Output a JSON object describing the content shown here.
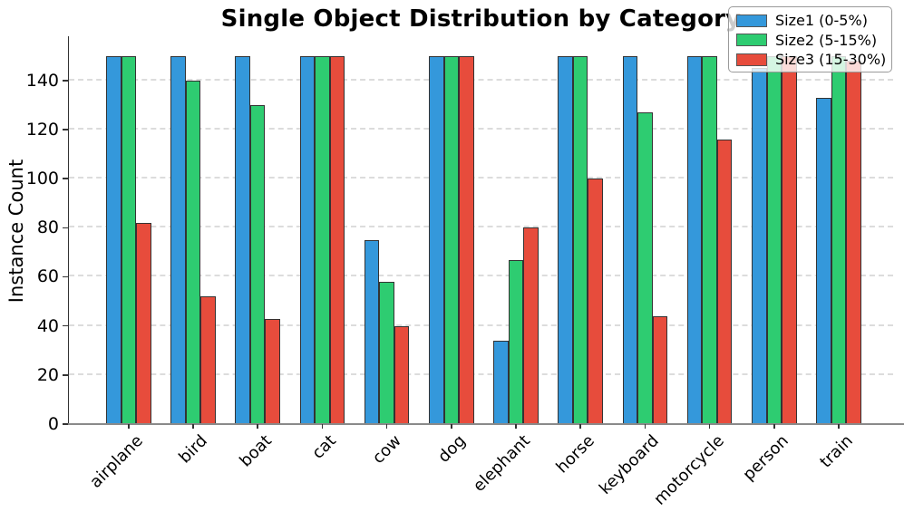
{
  "chart_data": {
    "type": "bar",
    "title": "Single Object Distribution by Category",
    "ylabel": "Instance Count",
    "xlabel": "",
    "categories": [
      "airplane",
      "bird",
      "boat",
      "cat",
      "cow",
      "dog",
      "elephant",
      "horse",
      "keyboard",
      "motorcycle",
      "person",
      "train"
    ],
    "series": [
      {
        "name": "Size1 (0-5%)",
        "color": "#3498db",
        "values": [
          150,
          150,
          150,
          150,
          75,
          150,
          34,
          150,
          150,
          150,
          145,
          133
        ]
      },
      {
        "name": "Size2 (5-15%)",
        "color": "#2ecc71",
        "values": [
          150,
          140,
          130,
          150,
          58,
          150,
          67,
          150,
          127,
          150,
          150,
          150
        ]
      },
      {
        "name": "Size3 (15-30%)",
        "color": "#e74c3c",
        "values": [
          82,
          52,
          43,
          150,
          40,
          150,
          80,
          100,
          44,
          116,
          150,
          148
        ]
      }
    ],
    "ylim": [
      0,
      158
    ],
    "yticks": [
      0,
      20,
      40,
      60,
      80,
      100,
      120,
      140
    ],
    "grid": true,
    "grid_style": "dashed",
    "legend_position": "upper right",
    "x_tick_rotation": 45,
    "bar_edge_color": "#333333"
  }
}
